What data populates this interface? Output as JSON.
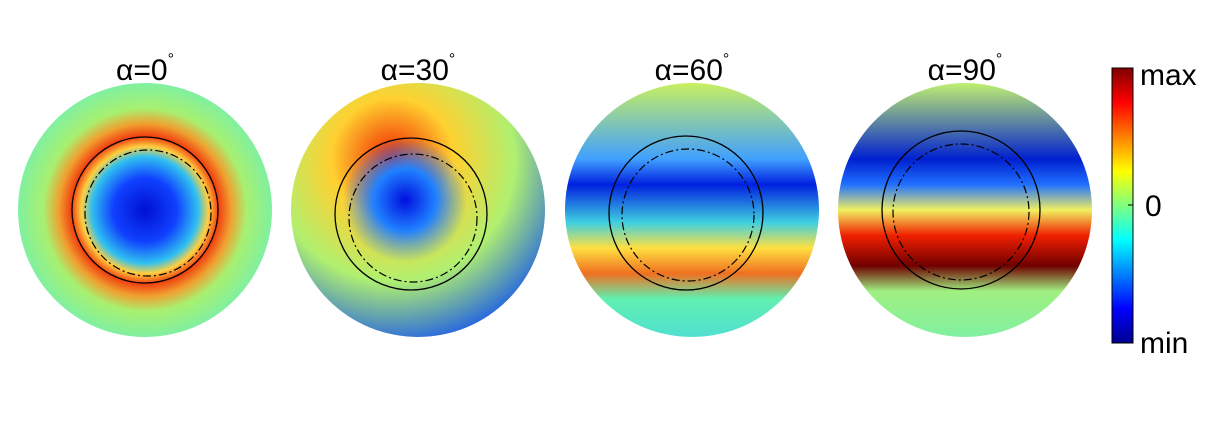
{
  "panels": [
    {
      "title": {
        "text": "α=0",
        "sup": "°"
      }
    },
    {
      "title": {
        "text": "α=30",
        "sup": "°"
      }
    },
    {
      "title": {
        "text": "α=60",
        "sup": "°"
      }
    },
    {
      "title": {
        "text": "α=90",
        "sup": "°"
      }
    }
  ],
  "colorbar": {
    "labels": [
      "max",
      "0",
      "min"
    ]
  }
}
